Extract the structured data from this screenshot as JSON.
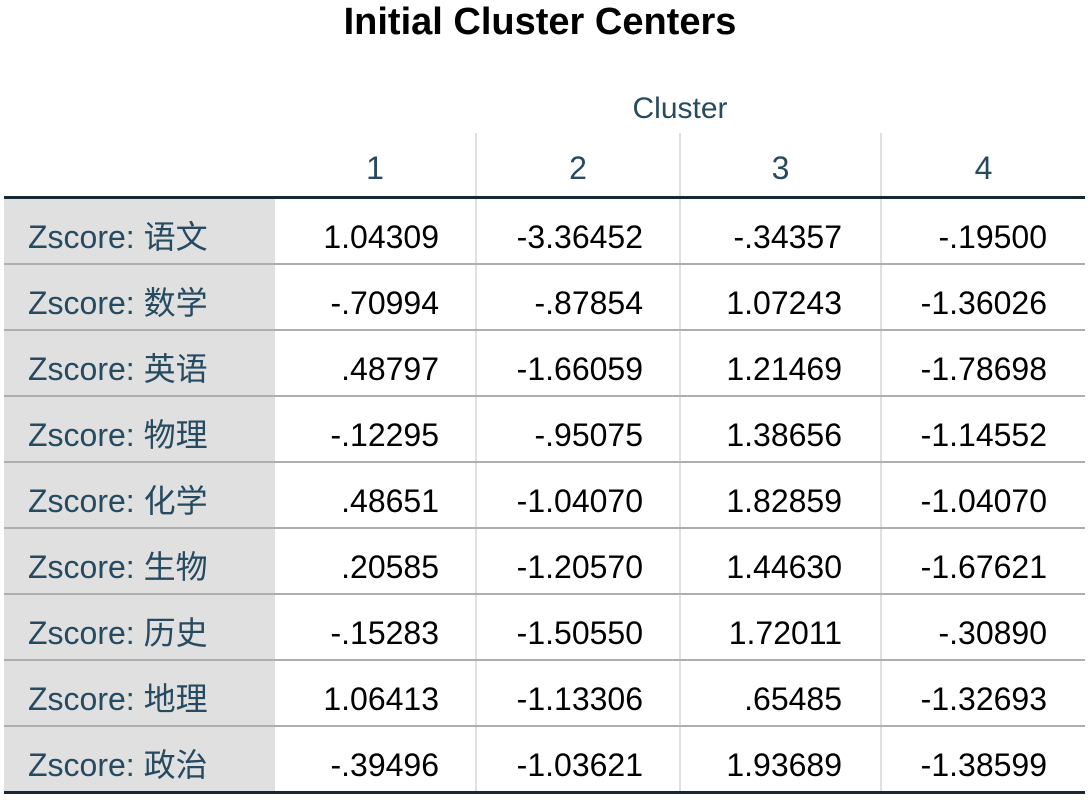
{
  "title": "Initial Cluster Centers",
  "cluster_header": "Cluster",
  "columns": [
    "1",
    "2",
    "3",
    "4"
  ],
  "rows": [
    {
      "label": "Zscore:  语文",
      "values": [
        "1.04309",
        "-3.36452",
        "-.34357",
        "-.19500"
      ]
    },
    {
      "label": "Zscore:  数学",
      "values": [
        "-.70994",
        "-.87854",
        "1.07243",
        "-1.36026"
      ]
    },
    {
      "label": "Zscore:  英语",
      "values": [
        ".48797",
        "-1.66059",
        "1.21469",
        "-1.78698"
      ]
    },
    {
      "label": "Zscore:  物理",
      "values": [
        "-.12295",
        "-.95075",
        "1.38656",
        "-1.14552"
      ]
    },
    {
      "label": "Zscore:  化学",
      "values": [
        ".48651",
        "-1.04070",
        "1.82859",
        "-1.04070"
      ]
    },
    {
      "label": "Zscore:  生物",
      "values": [
        ".20585",
        "-1.20570",
        "1.44630",
        "-1.67621"
      ]
    },
    {
      "label": "Zscore:  历史",
      "values": [
        "-.15283",
        "-1.50550",
        "1.72011",
        "-.30890"
      ]
    },
    {
      "label": "Zscore:  地理",
      "values": [
        "1.06413",
        "-1.13306",
        ".65485",
        "-1.32693"
      ]
    },
    {
      "label": "Zscore:  政治",
      "values": [
        "-.39496",
        "-1.03621",
        "1.93689",
        "-1.38599"
      ]
    }
  ],
  "colors": {
    "label_text": "#264a60",
    "label_bg": "#e0e0e0",
    "rule_dark": "#152935",
    "rule_light": "#aeaeae"
  }
}
